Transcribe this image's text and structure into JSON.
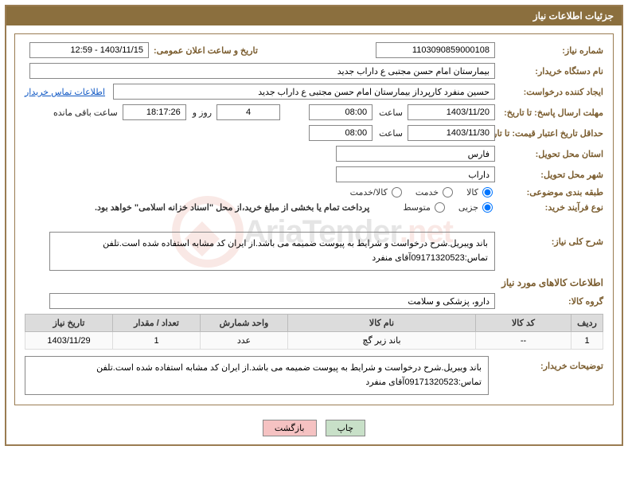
{
  "title": "جزئیات اطلاعات نیاز",
  "labels": {
    "need_no": "شماره نیاز:",
    "ann_date": "تاریخ و ساعت اعلان عمومی:",
    "buyer_org": "نام دستگاه خریدار:",
    "requester": "ایجاد کننده درخواست:",
    "contact": "اطلاعات تماس خریدار",
    "resp_deadline": "مهلت ارسال پاسخ: تا تاریخ:",
    "hour": "ساعت",
    "days_and": "روز و",
    "time_left": "ساعت باقی مانده",
    "min_valid": "حداقل تاریخ اعتبار قیمت: تا تاریخ:",
    "province": "استان محل تحویل:",
    "city": "شهر محل تحویل:",
    "subject_class": "طبقه بندی موضوعی:",
    "process_type": "نوع فرآیند خرید:",
    "process_note": "پرداخت تمام یا بخشی از مبلغ خرید،از محل \"اسناد خزانه اسلامی\" خواهد بود.",
    "desc_title": "شرح کلی نیاز:",
    "goods_info": "اطلاعات کالاهای مورد نیاز",
    "goods_group": "گروه کالا:",
    "buyer_notes": "توضیحات خریدار:"
  },
  "fields": {
    "need_no": "1103090859000108",
    "ann_date": "1403/11/15 - 12:59",
    "buyer_org": "بیمارستان امام حسن مجتبی  ع  داراب جدید",
    "requester": "حسین  منفرد کارپرداز بیمارستان امام حسن مجتبی  ع  داراب جدید",
    "resp_date": "1403/11/20",
    "resp_hour": "08:00",
    "days_left": "4",
    "time_left": "18:17:26",
    "valid_date": "1403/11/30",
    "valid_hour": "08:00",
    "province": "فارس",
    "city": "داراب",
    "goods_group": "دارو، پزشکی و سلامت"
  },
  "radios": {
    "kala": "کالا",
    "khadmat": "خدمت",
    "kala_khadmat": "کالا/خدمت",
    "jozei": "جزیی",
    "motevaset": "متوسط"
  },
  "description": "باند ویبریل.شرح درخواست و شرایط به پیوست ضمیمه می باشد.از ایران کد مشابه استفاده شده است.تلفن تماس:09171320523آقای منفرد",
  "table": {
    "headers": [
      "ردیف",
      "کد کالا",
      "نام کالا",
      "واحد شمارش",
      "تعداد / مقدار",
      "تاریخ نیاز"
    ],
    "rows": [
      [
        "1",
        "--",
        "باند زیر گچ",
        "عدد",
        "1",
        "1403/11/29"
      ]
    ]
  },
  "buyer_notes": "باند ویبریل.شرح درخواست و شرایط به پیوست ضمیمه می باشد.از ایران کد مشابه استفاده شده است.تلفن تماس:09171320523آقای منفرد",
  "buttons": {
    "print": "چاپ",
    "back": "بازگشت"
  },
  "watermark": {
    "text1": "AriaTender",
    "text2": ".net"
  },
  "colors": {
    "border": "#9a7c52",
    "title_bg": "#8b6f3e",
    "label": "#7a5c2e",
    "link": "#1058c4",
    "th_bg": "#dcdcdc"
  }
}
